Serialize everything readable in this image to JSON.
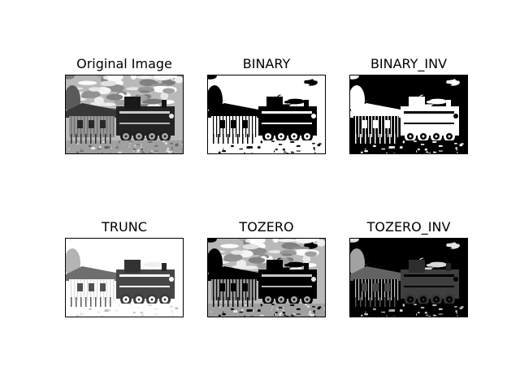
{
  "figure": {
    "panels": [
      {
        "title": "Original Image",
        "variant": "original"
      },
      {
        "title": "BINARY",
        "variant": "binary"
      },
      {
        "title": "BINARY_INV",
        "variant": "binary_inv"
      },
      {
        "title": "TRUNC",
        "variant": "trunc"
      },
      {
        "title": "TOZERO",
        "variant": "tozero"
      },
      {
        "title": "TOZERO_INV",
        "variant": "tozero_inv"
      }
    ]
  },
  "colors": {
    "background": "#ffffff",
    "frame": "#000000",
    "text": "#000000"
  }
}
